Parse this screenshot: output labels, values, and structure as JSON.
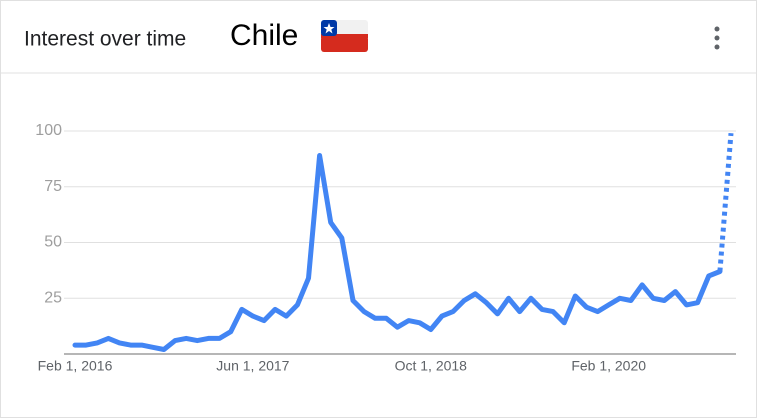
{
  "chart_data": {
    "type": "line",
    "title": "Interest over time",
    "subtitle": "Chile",
    "categories": [
      "Feb 1, 2016",
      null,
      null,
      null,
      null,
      null,
      null,
      null,
      null,
      null,
      null,
      null,
      null,
      null,
      null,
      null,
      "Jun 1, 2017",
      null,
      null,
      null,
      null,
      null,
      null,
      null,
      null,
      null,
      null,
      null,
      null,
      null,
      null,
      null,
      "Oct 1, 2018",
      null,
      null,
      null,
      null,
      null,
      null,
      null,
      null,
      null,
      null,
      null,
      null,
      null,
      null,
      null,
      "Feb 1, 2020",
      null,
      null,
      null,
      null,
      null,
      null,
      null,
      null,
      null,
      null,
      null
    ],
    "series": [
      {
        "color": "#4285f4",
        "values": [
          4,
          4,
          5,
          7,
          5,
          4,
          4,
          3,
          2,
          6,
          7,
          6,
          7,
          7,
          10,
          20,
          17,
          15,
          20,
          17,
          22,
          34,
          89,
          59,
          52,
          24,
          19,
          16,
          16,
          12,
          15,
          14,
          11,
          17,
          19,
          24,
          27,
          23,
          18,
          25,
          19,
          25,
          20,
          19,
          14,
          26,
          21,
          19,
          22,
          25,
          24,
          31,
          25,
          24,
          28,
          22,
          23,
          35,
          37,
          null
        ]
      },
      {
        "color": "#4285f4",
        "dashed": true,
        "values": [
          null,
          null,
          null,
          null,
          null,
          null,
          null,
          null,
          null,
          null,
          null,
          null,
          null,
          null,
          null,
          null,
          null,
          null,
          null,
          null,
          null,
          null,
          null,
          null,
          null,
          null,
          null,
          null,
          null,
          null,
          null,
          null,
          null,
          null,
          null,
          null,
          null,
          null,
          null,
          null,
          null,
          null,
          null,
          null,
          null,
          null,
          null,
          null,
          null,
          null,
          null,
          null,
          null,
          null,
          null,
          null,
          null,
          null,
          37,
          99
        ]
      }
    ],
    "ylim": [
      0,
      100
    ],
    "yticks": [
      25,
      50,
      75,
      100
    ],
    "grid": true
  }
}
